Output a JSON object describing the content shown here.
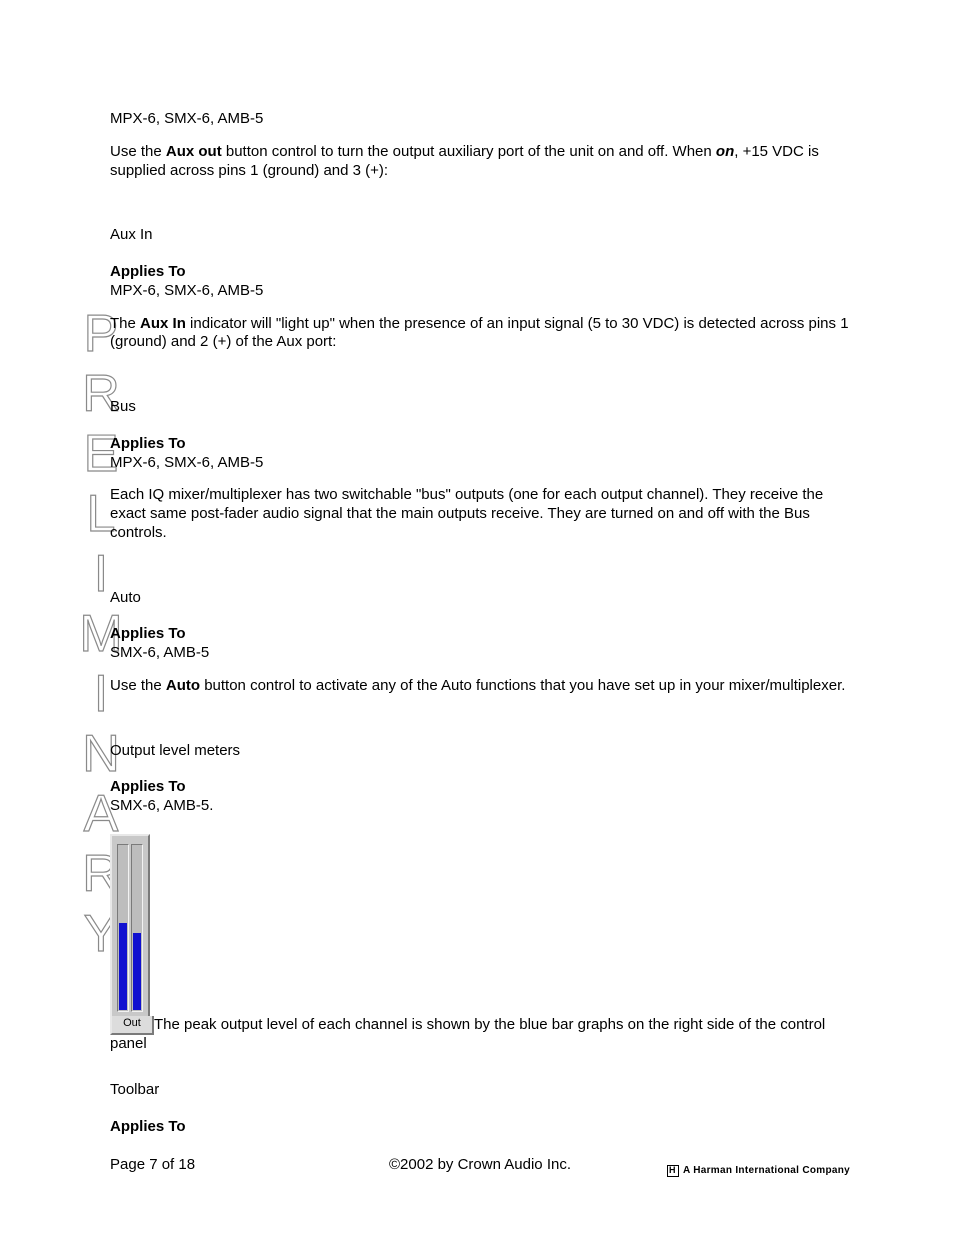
{
  "watermark": {
    "text": "PRELIMINARY"
  },
  "sections": {
    "auxout": {
      "applies_value": "MPX-6, SMX-6, AMB-5",
      "body_p1_a": "Use the ",
      "body_p1_bold": "Aux out",
      "body_p1_b": " button control to turn the output auxiliary port of the unit on and off. When ",
      "body_p1_bolditalic": "on",
      "body_p1_c": ", +15 VDC is supplied across pins 1 (ground) and 3 (+):"
    },
    "auxin": {
      "title": "Aux In",
      "applies_label": "Applies To",
      "applies_value": "MPX-6, SMX-6, AMB-5",
      "body_a": "The ",
      "body_bold": "Aux In",
      "body_b": " indicator will \"light up\" when the presence of an input signal (5 to 30 VDC) is detected across pins 1 (ground) and 2 (+) of the Aux port:"
    },
    "bus": {
      "title": "Bus",
      "applies_label": "Applies To",
      "applies_value": "MPX-6, SMX-6, AMB-5",
      "body": "Each IQ mixer/multiplexer has two switchable \"bus\" outputs (one for each output channel). They receive the exact same post-fader audio signal that the main outputs receive. They are turned on and off with the Bus controls."
    },
    "auto": {
      "title": "Auto",
      "applies_label": "Applies To",
      "applies_value": "SMX-6, AMB-5",
      "body_a": "Use the ",
      "body_bold": "Auto",
      "body_b": " button control to activate any of the Auto functions that you have set up in your mixer/multiplexer."
    },
    "meters": {
      "title": "Output level meters",
      "applies_label": "Applies To",
      "applies_value": "SMX-6, AMB-5.",
      "graphic": {
        "outer_bg": "#c8c8c8",
        "track_bg": "#bdbdbd",
        "fill_color": "#1010d0",
        "left_fill_pct": 52,
        "right_fill_pct": 46,
        "out_label": "Out"
      },
      "body": "The peak output level of each channel is shown by the blue bar graphs on the right side of the control panel"
    },
    "toolbar": {
      "title": "Toolbar",
      "applies_label": "Applies To"
    }
  },
  "footer": {
    "page": "Page 7 of 18",
    "copyright": "©2002 by Crown Audio Inc.",
    "company": "A Harman International Company"
  }
}
